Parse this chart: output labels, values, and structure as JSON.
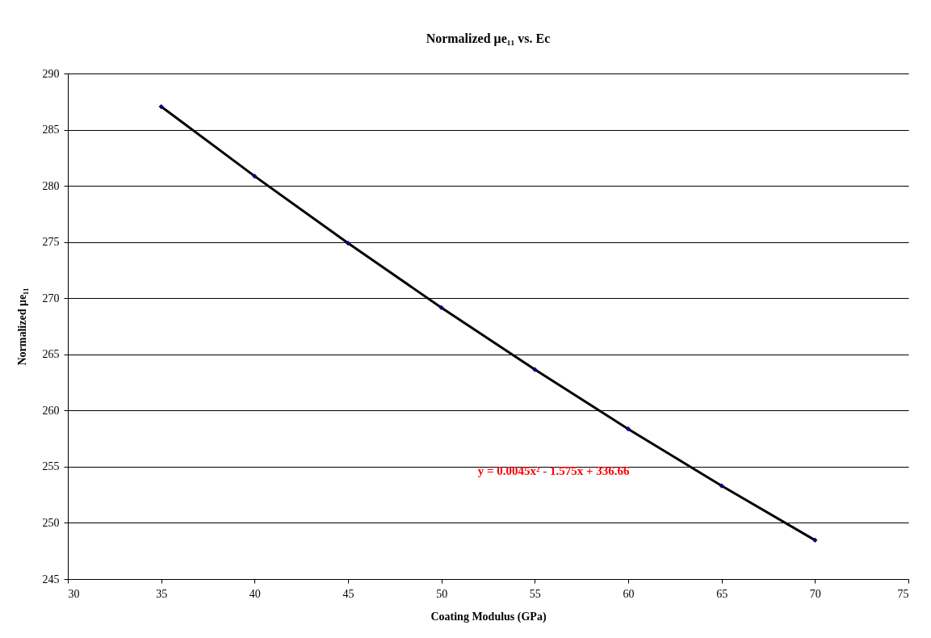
{
  "chart_data": {
    "type": "scatter",
    "title": "Normalized μe₁₁ vs. Ec",
    "xlabel": "Coating Modulus (GPa)",
    "ylabel": "Normalized μe₁₁",
    "series": [
      {
        "type": "line",
        "color": "#000000",
        "x": [
          35,
          40,
          45,
          50,
          55,
          60,
          65,
          70
        ],
        "values": [
          287.05,
          280.86,
          274.9,
          269.16,
          263.65,
          258.36,
          253.3,
          248.46
        ],
        "marker": "none"
      },
      {
        "color": "#000080",
        "x": [
          35,
          40,
          45,
          50,
          55,
          60,
          65,
          70
        ],
        "values": [
          287.05,
          280.86,
          274.9,
          269.16,
          263.65,
          258.36,
          253.3,
          248.46
        ],
        "marker": "diamond"
      }
    ],
    "annotations": [
      "y = 0.0045x² - 1.575x + 336.66"
    ],
    "xlim": [
      30,
      75
    ],
    "xticks": [
      30,
      35,
      40,
      45,
      50,
      55,
      60,
      65,
      70,
      75
    ],
    "ylim": [
      245,
      290
    ],
    "yticks": [
      245,
      250,
      255,
      260,
      265,
      270,
      275,
      280,
      285,
      290
    ],
    "grid": "y"
  }
}
